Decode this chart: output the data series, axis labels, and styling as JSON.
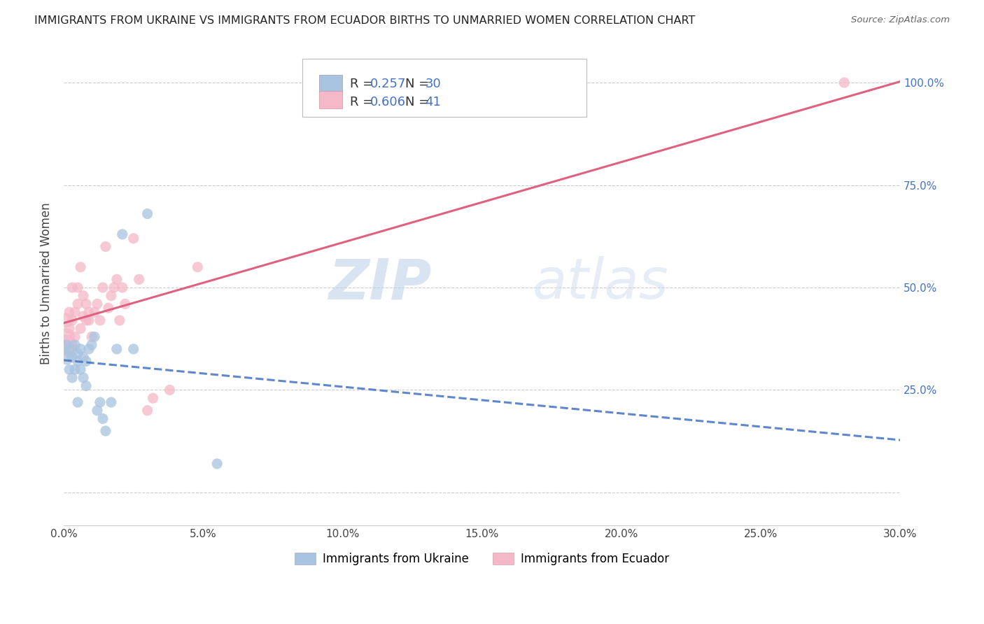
{
  "title": "IMMIGRANTS FROM UKRAINE VS IMMIGRANTS FROM ECUADOR BIRTHS TO UNMARRIED WOMEN CORRELATION CHART",
  "source": "Source: ZipAtlas.com",
  "ylabel": "Births to Unmarried Women",
  "yticks": [
    0.0,
    0.25,
    0.5,
    0.75,
    1.0
  ],
  "ytick_labels": [
    "",
    "25.0%",
    "50.0%",
    "75.0%",
    "100.0%"
  ],
  "xlim": [
    0.0,
    0.3
  ],
  "ylim": [
    -0.08,
    1.1
  ],
  "ukraine_R": 0.257,
  "ukraine_N": 30,
  "ecuador_R": 0.606,
  "ecuador_N": 41,
  "ukraine_color": "#a8c4e0",
  "ecuador_color": "#f4b8c8",
  "ukraine_line_color": "#4472c4",
  "ecuador_line_color": "#e06080",
  "ukraine_x": [
    0.001,
    0.001,
    0.002,
    0.002,
    0.003,
    0.003,
    0.004,
    0.004,
    0.005,
    0.005,
    0.005,
    0.006,
    0.006,
    0.007,
    0.007,
    0.008,
    0.008,
    0.009,
    0.01,
    0.011,
    0.012,
    0.013,
    0.014,
    0.015,
    0.017,
    0.019,
    0.021,
    0.025,
    0.03,
    0.055
  ],
  "ukraine_y": [
    0.33,
    0.36,
    0.3,
    0.35,
    0.28,
    0.33,
    0.36,
    0.3,
    0.32,
    0.34,
    0.22,
    0.35,
    0.3,
    0.28,
    0.33,
    0.32,
    0.26,
    0.35,
    0.36,
    0.38,
    0.2,
    0.22,
    0.18,
    0.15,
    0.22,
    0.35,
    0.63,
    0.35,
    0.68,
    0.07
  ],
  "ecuador_x": [
    0.001,
    0.001,
    0.001,
    0.002,
    0.002,
    0.002,
    0.003,
    0.003,
    0.003,
    0.004,
    0.004,
    0.005,
    0.005,
    0.006,
    0.006,
    0.007,
    0.007,
    0.008,
    0.008,
    0.009,
    0.009,
    0.01,
    0.011,
    0.012,
    0.013,
    0.014,
    0.015,
    0.016,
    0.017,
    0.018,
    0.019,
    0.02,
    0.021,
    0.022,
    0.025,
    0.027,
    0.03,
    0.032,
    0.038,
    0.048,
    0.28
  ],
  "ecuador_y": [
    0.36,
    0.38,
    0.42,
    0.34,
    0.4,
    0.44,
    0.35,
    0.42,
    0.5,
    0.38,
    0.44,
    0.5,
    0.46,
    0.4,
    0.55,
    0.43,
    0.48,
    0.42,
    0.46,
    0.42,
    0.44,
    0.38,
    0.44,
    0.46,
    0.42,
    0.5,
    0.6,
    0.45,
    0.48,
    0.5,
    0.52,
    0.42,
    0.5,
    0.46,
    0.62,
    0.52,
    0.2,
    0.23,
    0.25,
    0.55,
    1.0
  ],
  "watermark_zip": "ZIP",
  "watermark_atlas": "atlas",
  "legend_ukraine_label": "Immigrants from Ukraine",
  "legend_ecuador_label": "Immigrants from Ecuador",
  "background_color": "#ffffff",
  "grid_color": "#cccccc",
  "text_color_dark": "#222222",
  "text_color_blue": "#4472c4",
  "scatter_size": 120
}
